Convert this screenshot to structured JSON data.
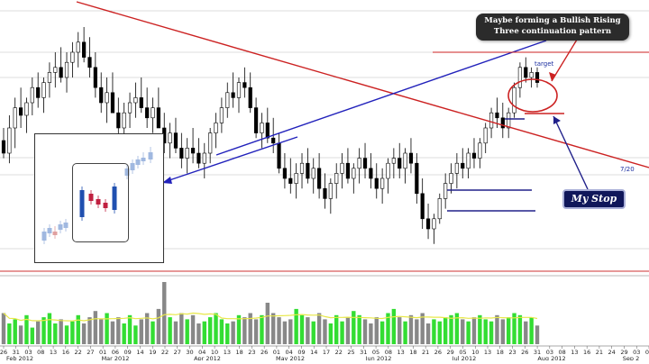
{
  "callout": {
    "line1": "Maybe forming a Bullish Rising",
    "line2": "Three continuation pattern"
  },
  "stop_label": "My Stop",
  "annotations": {
    "target": "target",
    "date_mark": "7/20"
  },
  "colors": {
    "resistance_line": "#cc2222",
    "support_line": "#2222bb",
    "volume_up": "#33dd33",
    "volume_down": "#888888",
    "volume_ma": "#e8e84a",
    "candle_up": "#ffffff",
    "candle_down": "#000000"
  },
  "chart_data": {
    "type": "candlestick",
    "price_axis": "none printed",
    "x_tick_labels": [
      "26",
      "31",
      "03",
      "08",
      "13",
      "16",
      "22",
      "27",
      "01",
      "06",
      "09",
      "14",
      "19",
      "22",
      "27",
      "30",
      "04",
      "10",
      "13",
      "18",
      "23",
      "26",
      "01",
      "04",
      "09",
      "14",
      "17",
      "22",
      "25",
      "31",
      "05",
      "08",
      "13",
      "18",
      "21",
      "26",
      "29",
      "05",
      "10",
      "13",
      "18",
      "23",
      "26",
      "31",
      "03",
      "08",
      "13",
      "16",
      "21",
      "24",
      "29",
      "03",
      "07"
    ],
    "month_labels": [
      "Feb 2012",
      "Mar 2012",
      "Apr 2012",
      "May 2012",
      "Jun 2012",
      "Jul 2012",
      "Aug 2012",
      "Sep 2"
    ],
    "ohlc_approx": [
      {
        "o": 45,
        "h": 50,
        "l": 38,
        "c": 40
      },
      {
        "o": 40,
        "h": 55,
        "l": 36,
        "c": 50
      },
      {
        "o": 50,
        "h": 62,
        "l": 42,
        "c": 58
      },
      {
        "o": 58,
        "h": 66,
        "l": 50,
        "c": 55
      },
      {
        "o": 55,
        "h": 62,
        "l": 48,
        "c": 60
      },
      {
        "o": 60,
        "h": 70,
        "l": 55,
        "c": 66
      },
      {
        "o": 66,
        "h": 72,
        "l": 58,
        "c": 62
      },
      {
        "o": 62,
        "h": 70,
        "l": 56,
        "c": 68
      },
      {
        "o": 68,
        "h": 76,
        "l": 62,
        "c": 72
      },
      {
        "o": 72,
        "h": 80,
        "l": 66,
        "c": 74
      },
      {
        "o": 74,
        "h": 82,
        "l": 68,
        "c": 70
      },
      {
        "o": 70,
        "h": 80,
        "l": 64,
        "c": 76
      },
      {
        "o": 76,
        "h": 84,
        "l": 70,
        "c": 80
      },
      {
        "o": 80,
        "h": 88,
        "l": 74,
        "c": 84
      },
      {
        "o": 84,
        "h": 90,
        "l": 76,
        "c": 78
      },
      {
        "o": 78,
        "h": 86,
        "l": 70,
        "c": 74
      },
      {
        "o": 74,
        "h": 80,
        "l": 62,
        "c": 66
      },
      {
        "o": 66,
        "h": 72,
        "l": 56,
        "c": 60
      },
      {
        "o": 60,
        "h": 70,
        "l": 52,
        "c": 64
      },
      {
        "o": 64,
        "h": 72,
        "l": 58,
        "c": 56
      },
      {
        "o": 56,
        "h": 62,
        "l": 46,
        "c": 50
      },
      {
        "o": 50,
        "h": 60,
        "l": 44,
        "c": 56
      },
      {
        "o": 56,
        "h": 64,
        "l": 50,
        "c": 60
      },
      {
        "o": 60,
        "h": 68,
        "l": 54,
        "c": 62
      },
      {
        "o": 62,
        "h": 70,
        "l": 56,
        "c": 58
      },
      {
        "o": 58,
        "h": 66,
        "l": 50,
        "c": 54
      },
      {
        "o": 54,
        "h": 62,
        "l": 48,
        "c": 58
      },
      {
        "o": 58,
        "h": 66,
        "l": 52,
        "c": 50
      },
      {
        "o": 50,
        "h": 56,
        "l": 40,
        "c": 44
      },
      {
        "o": 44,
        "h": 52,
        "l": 38,
        "c": 48
      },
      {
        "o": 48,
        "h": 54,
        "l": 40,
        "c": 42
      },
      {
        "o": 42,
        "h": 48,
        "l": 34,
        "c": 38
      },
      {
        "o": 38,
        "h": 46,
        "l": 32,
        "c": 42
      },
      {
        "o": 42,
        "h": 50,
        "l": 36,
        "c": 40
      },
      {
        "o": 40,
        "h": 46,
        "l": 34,
        "c": 36
      },
      {
        "o": 36,
        "h": 44,
        "l": 30,
        "c": 40
      },
      {
        "o": 40,
        "h": 50,
        "l": 36,
        "c": 48
      },
      {
        "o": 48,
        "h": 56,
        "l": 42,
        "c": 52
      },
      {
        "o": 52,
        "h": 62,
        "l": 48,
        "c": 58
      },
      {
        "o": 58,
        "h": 68,
        "l": 54,
        "c": 64
      },
      {
        "o": 64,
        "h": 72,
        "l": 58,
        "c": 62
      },
      {
        "o": 62,
        "h": 70,
        "l": 56,
        "c": 68
      },
      {
        "o": 68,
        "h": 74,
        "l": 62,
        "c": 66
      },
      {
        "o": 66,
        "h": 72,
        "l": 56,
        "c": 58
      },
      {
        "o": 58,
        "h": 62,
        "l": 46,
        "c": 48
      },
      {
        "o": 48,
        "h": 56,
        "l": 42,
        "c": 52
      },
      {
        "o": 52,
        "h": 58,
        "l": 44,
        "c": 46
      },
      {
        "o": 46,
        "h": 54,
        "l": 40,
        "c": 44
      },
      {
        "o": 44,
        "h": 48,
        "l": 32,
        "c": 34
      },
      {
        "o": 34,
        "h": 40,
        "l": 26,
        "c": 30
      },
      {
        "o": 30,
        "h": 38,
        "l": 24,
        "c": 28
      },
      {
        "o": 28,
        "h": 36,
        "l": 22,
        "c": 32
      },
      {
        "o": 32,
        "h": 40,
        "l": 26,
        "c": 36
      },
      {
        "o": 36,
        "h": 42,
        "l": 28,
        "c": 30
      },
      {
        "o": 30,
        "h": 38,
        "l": 24,
        "c": 34
      },
      {
        "o": 34,
        "h": 40,
        "l": 22,
        "c": 26
      },
      {
        "o": 26,
        "h": 32,
        "l": 18,
        "c": 22
      },
      {
        "o": 22,
        "h": 30,
        "l": 16,
        "c": 28
      },
      {
        "o": 28,
        "h": 36,
        "l": 22,
        "c": 32
      },
      {
        "o": 32,
        "h": 40,
        "l": 26,
        "c": 36
      },
      {
        "o": 36,
        "h": 42,
        "l": 28,
        "c": 30
      },
      {
        "o": 30,
        "h": 36,
        "l": 24,
        "c": 34
      },
      {
        "o": 34,
        "h": 42,
        "l": 28,
        "c": 38
      },
      {
        "o": 38,
        "h": 44,
        "l": 30,
        "c": 34
      },
      {
        "o": 34,
        "h": 40,
        "l": 26,
        "c": 30
      },
      {
        "o": 30,
        "h": 36,
        "l": 22,
        "c": 26
      },
      {
        "o": 26,
        "h": 34,
        "l": 20,
        "c": 30
      },
      {
        "o": 30,
        "h": 38,
        "l": 24,
        "c": 36
      },
      {
        "o": 36,
        "h": 42,
        "l": 30,
        "c": 38
      },
      {
        "o": 38,
        "h": 44,
        "l": 30,
        "c": 34
      },
      {
        "o": 34,
        "h": 42,
        "l": 28,
        "c": 40
      },
      {
        "o": 40,
        "h": 46,
        "l": 32,
        "c": 36
      },
      {
        "o": 36,
        "h": 40,
        "l": 20,
        "c": 24
      },
      {
        "o": 24,
        "h": 30,
        "l": 10,
        "c": 14
      },
      {
        "o": 14,
        "h": 20,
        "l": 6,
        "c": 10
      },
      {
        "o": 10,
        "h": 16,
        "l": 4,
        "c": 14
      },
      {
        "o": 14,
        "h": 24,
        "l": 12,
        "c": 22
      },
      {
        "o": 22,
        "h": 32,
        "l": 18,
        "c": 28
      },
      {
        "o": 28,
        "h": 36,
        "l": 24,
        "c": 32
      },
      {
        "o": 32,
        "h": 40,
        "l": 26,
        "c": 36
      },
      {
        "o": 36,
        "h": 42,
        "l": 30,
        "c": 34
      },
      {
        "o": 34,
        "h": 42,
        "l": 30,
        "c": 40
      },
      {
        "o": 40,
        "h": 46,
        "l": 34,
        "c": 38
      },
      {
        "o": 38,
        "h": 46,
        "l": 34,
        "c": 44
      },
      {
        "o": 44,
        "h": 52,
        "l": 40,
        "c": 50
      },
      {
        "o": 50,
        "h": 58,
        "l": 46,
        "c": 56
      },
      {
        "o": 56,
        "h": 62,
        "l": 50,
        "c": 54
      },
      {
        "o": 54,
        "h": 60,
        "l": 46,
        "c": 50
      },
      {
        "o": 50,
        "h": 58,
        "l": 46,
        "c": 56
      },
      {
        "o": 56,
        "h": 68,
        "l": 54,
        "c": 66
      },
      {
        "o": 66,
        "h": 76,
        "l": 62,
        "c": 74
      },
      {
        "o": 74,
        "h": 78,
        "l": 68,
        "c": 70
      },
      {
        "o": 70,
        "h": 74,
        "l": 66,
        "c": 72
      },
      {
        "o": 72,
        "h": 74,
        "l": 66,
        "c": 68
      }
    ],
    "volume_approx": [
      30,
      20,
      24,
      18,
      28,
      16,
      22,
      26,
      30,
      20,
      24,
      18,
      22,
      28,
      20,
      26,
      32,
      24,
      30,
      22,
      26,
      20,
      28,
      18,
      24,
      30,
      22,
      34,
      60,
      26,
      22,
      30,
      24,
      28,
      20,
      22,
      26,
      30,
      24,
      20,
      22,
      28,
      26,
      30,
      24,
      28,
      40,
      30,
      26,
      22,
      24,
      34,
      28,
      26,
      22,
      30,
      24,
      20,
      28,
      22,
      26,
      32,
      28,
      24,
      20,
      26,
      22,
      30,
      34,
      26,
      22,
      28,
      24,
      30,
      20,
      24,
      22,
      26,
      28,
      30,
      24,
      22,
      26,
      28,
      24,
      22,
      28,
      24,
      26,
      30,
      28,
      22,
      26,
      18
    ]
  }
}
